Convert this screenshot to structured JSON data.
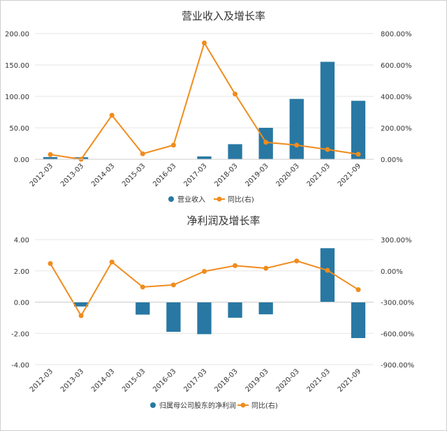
{
  "colors": {
    "bar": "#2878a3",
    "line": "#f08c1d",
    "grid": "#e6e6e6",
    "axis": "#333333"
  },
  "chart_data": [
    {
      "type": "bar",
      "title": "营业收入及增长率",
      "categories": [
        "2012-03",
        "2013-03",
        "2014-03",
        "2015-03",
        "2016-03",
        "2017-03",
        "2018-03",
        "2019-03",
        "2020-03",
        "2021-03",
        "2021-09"
      ],
      "left_ticks": [
        "200.00",
        "150.00",
        "100.00",
        "50.00",
        "0.00"
      ],
      "right_ticks": [
        "800.00%",
        "600.00%",
        "400.00%",
        "200.00%",
        "0.00%"
      ],
      "ylim": [
        0,
        200
      ],
      "ylim_right": [
        0,
        800
      ],
      "grid": true,
      "legend_position": "bottom-center",
      "series": [
        {
          "name": "营业收入",
          "type": "bar",
          "axis": "left",
          "values": [
            3.5,
            3.2,
            0.4,
            0.4,
            0.5,
            4.5,
            24,
            50,
            96,
            155,
            93
          ]
        },
        {
          "name": "同比(右)",
          "type": "line",
          "axis": "right",
          "values": [
            30,
            0,
            280,
            35,
            90,
            740,
            415,
            108,
            90,
            62,
            32
          ]
        }
      ]
    },
    {
      "type": "bar",
      "title": "净利润及增长率",
      "categories": [
        "2012-03",
        "2013-03",
        "2014-03",
        "2015-03",
        "2016-03",
        "2017-03",
        "2018-03",
        "2019-03",
        "2020-03",
        "2021-03",
        "2021-09"
      ],
      "left_ticks": [
        "4.00",
        "2.00",
        "0.00",
        "-2.00",
        "-4.00"
      ],
      "right_ticks": [
        "300.00%",
        "0.00%",
        "-300.00%",
        "-600.00%",
        "-900.00%"
      ],
      "ylim": [
        -4,
        4
      ],
      "ylim_right": [
        -900,
        300
      ],
      "grid": true,
      "legend_position": "bottom-center",
      "series": [
        {
          "name": "归属母公司股东的净利润",
          "type": "bar",
          "axis": "left",
          "values": [
            0.02,
            -0.28,
            0.02,
            -0.8,
            -1.9,
            -2.05,
            -1.0,
            -0.78,
            0.02,
            3.45,
            -2.3
          ]
        },
        {
          "name": "同比(右)",
          "type": "line",
          "axis": "right",
          "values": [
            70,
            -430,
            85,
            -155,
            -135,
            -5,
            50,
            25,
            95,
            5,
            -180
          ]
        }
      ]
    }
  ]
}
